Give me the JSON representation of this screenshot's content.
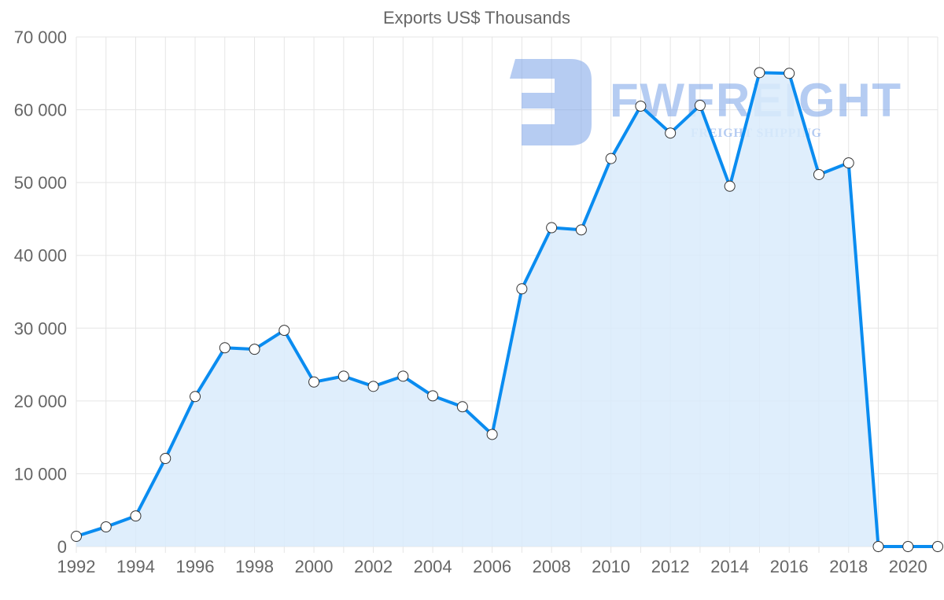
{
  "chart_data": {
    "type": "area",
    "title": "Exports US$ Thousands",
    "xlabel": "",
    "ylabel": "",
    "x": [
      1992,
      1993,
      1994,
      1995,
      1996,
      1997,
      1998,
      1999,
      2000,
      2001,
      2002,
      2003,
      2004,
      2005,
      2006,
      2007,
      2008,
      2009,
      2010,
      2011,
      2012,
      2013,
      2014,
      2015,
      2016,
      2017,
      2018,
      2019,
      2020,
      2021
    ],
    "series": [
      {
        "name": "Exports US$ Thousands",
        "values": [
          1400,
          2700,
          4200,
          12100,
          20600,
          27300,
          27100,
          29700,
          22600,
          23400,
          22000,
          23400,
          20700,
          19200,
          15400,
          35400,
          43800,
          43500,
          53300,
          60500,
          56800,
          60600,
          49500,
          65100,
          65000,
          51100,
          52700,
          0,
          0,
          0
        ]
      }
    ],
    "xlim": [
      1992,
      2021
    ],
    "ylim": [
      0,
      70000
    ],
    "x_ticks": [
      "1992",
      "1994",
      "1996",
      "1998",
      "2000",
      "2002",
      "2004",
      "2006",
      "2008",
      "2010",
      "2012",
      "2014",
      "2016",
      "2018",
      "2020"
    ],
    "y_ticks": [
      "0",
      "10 000",
      "20 000",
      "30 000",
      "40 000",
      "50 000",
      "60 000",
      "70 000"
    ],
    "grid": true,
    "legend": "none",
    "colors": {
      "line": "#0a8cf0",
      "fill": "#d9ebfb",
      "point_fill": "#ffffff",
      "point_stroke": "#333333"
    }
  },
  "watermark": {
    "brand": "FWFREIGHT",
    "tagline": "FREIGHT SHIPPING"
  }
}
